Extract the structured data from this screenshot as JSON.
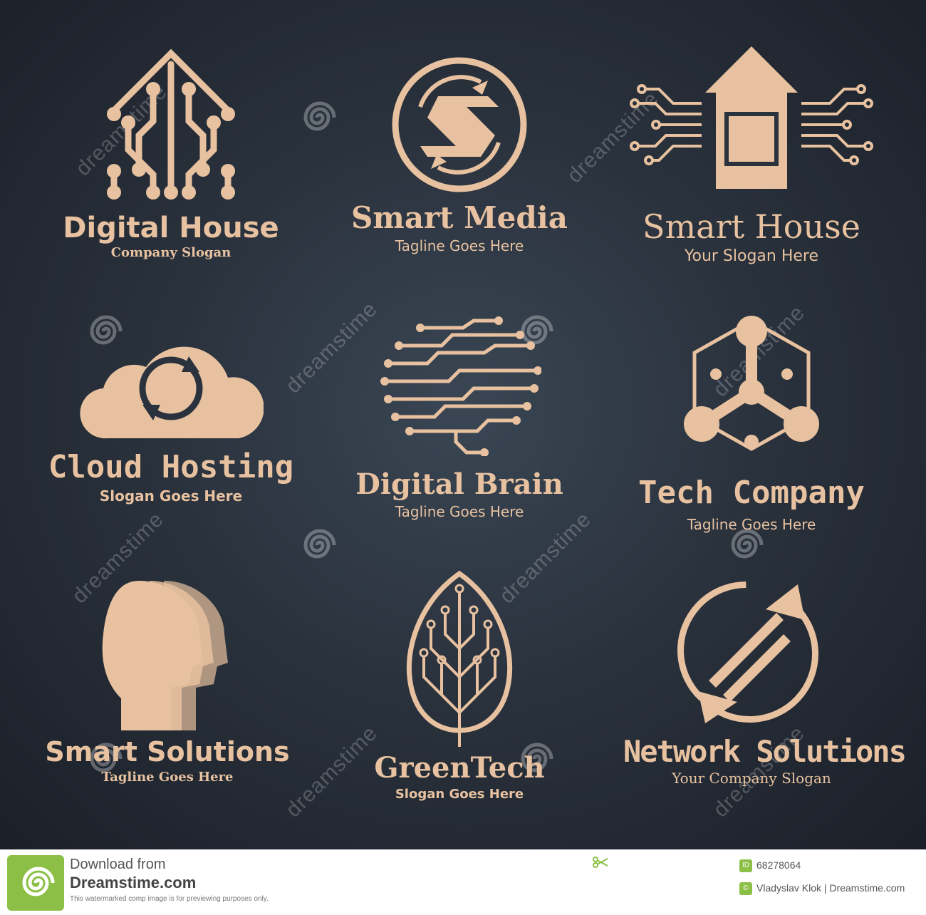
{
  "colors": {
    "accent": "#e8c2a0",
    "background": "#232a33",
    "footer_green": "#8cbf45"
  },
  "logos": [
    {
      "title": "Digital House",
      "slogan": "Company Slogan",
      "icon": "circuit-house-icon"
    },
    {
      "title": "Smart Media",
      "slogan": "Tagline Goes Here",
      "icon": "letter-s-circle-icon"
    },
    {
      "title": "Smart House",
      "slogan": "Your Slogan Here",
      "icon": "house-chip-icon"
    },
    {
      "title": "Cloud Hosting",
      "slogan": "Slogan Goes Here",
      "icon": "cloud-sync-icon"
    },
    {
      "title": "Digital Brain",
      "slogan": "Tagline Goes Here",
      "icon": "circuit-brain-icon"
    },
    {
      "title": "Tech Company",
      "slogan": "Tagline Goes Here",
      "icon": "molecule-hexagon-icon"
    },
    {
      "title": "Smart Solutions",
      "slogan": "Tagline Goes Here",
      "icon": "heads-profile-icon"
    },
    {
      "title": "GreenTech",
      "slogan": "Slogan Goes Here",
      "icon": "circuit-leaf-icon"
    },
    {
      "title": "Network Solutions",
      "slogan": "Your Company Slogan",
      "icon": "circle-arrows-icon"
    }
  ],
  "watermark": {
    "text": "dreamstime"
  },
  "footer": {
    "download_line": "Download from",
    "site": "Dreamstime.com",
    "notice": "This watermarked comp image is for previewing purposes only.",
    "image_id": "68278064",
    "author": "Vladyslav Klok | Dreamstime.com",
    "id_badge": "ID"
  }
}
